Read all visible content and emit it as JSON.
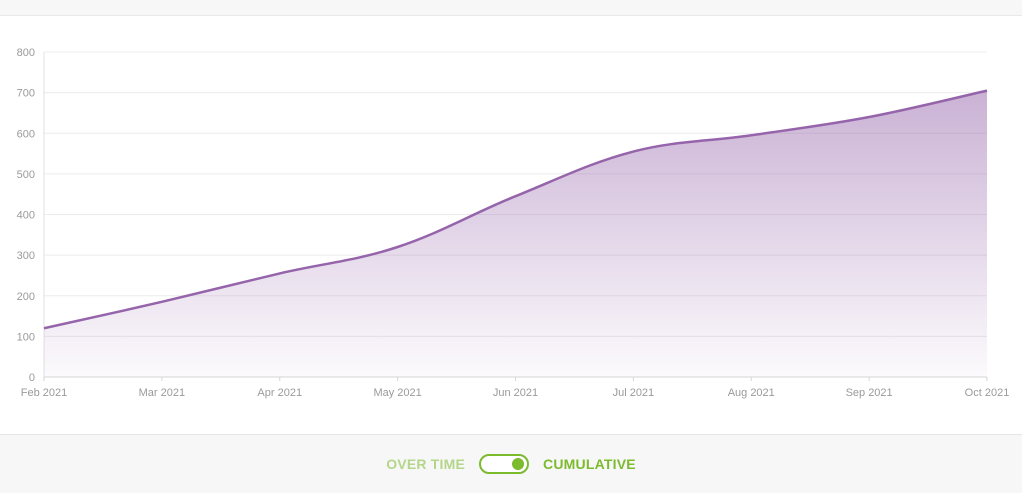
{
  "chart_data": {
    "type": "area",
    "title": "",
    "xlabel": "",
    "ylabel": "",
    "categories": [
      "Feb 2021",
      "Mar 2021",
      "Apr 2021",
      "May 2021",
      "Jun 2021",
      "Jul 2021",
      "Aug 2021",
      "Sep 2021",
      "Oct 2021"
    ],
    "values": [
      120,
      185,
      255,
      320,
      445,
      555,
      595,
      640,
      705
    ],
    "ylim": [
      0,
      800
    ],
    "yticks": [
      0,
      100,
      200,
      300,
      400,
      500,
      600,
      700,
      800
    ],
    "grid": true,
    "line_color": "#9564aa",
    "fill_color": "#9564aa"
  },
  "toggle": {
    "left_label": "OVER TIME",
    "right_label": "CUMULATIVE",
    "selected": "CUMULATIVE",
    "accent_color": "#7cbb2e"
  }
}
